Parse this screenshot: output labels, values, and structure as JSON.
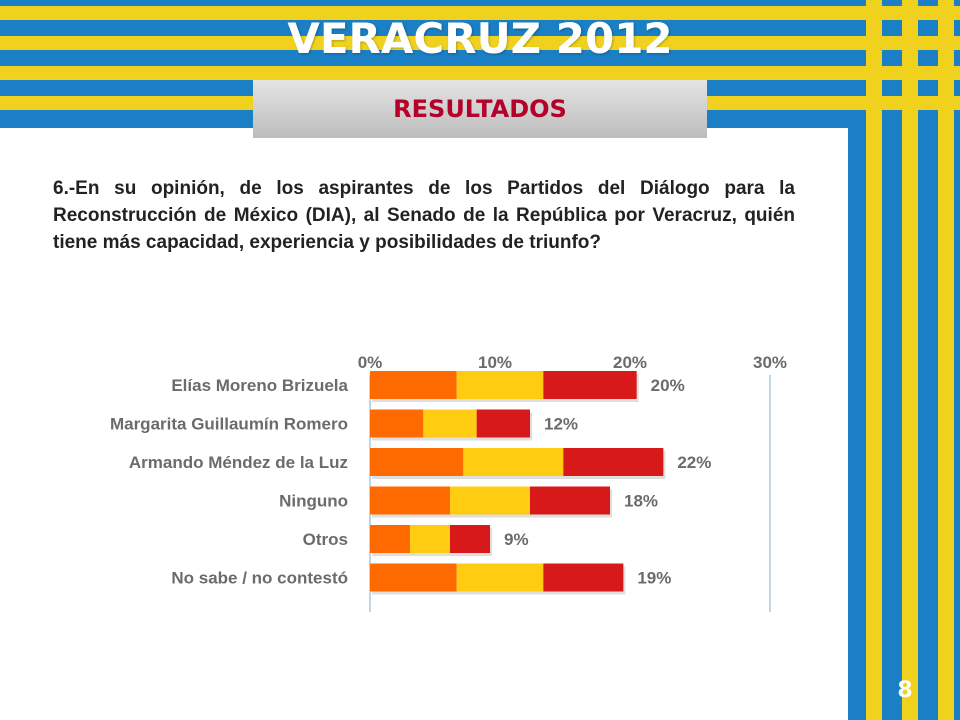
{
  "title": "VERACRUZ 2012",
  "subtitle": "RESULTADOS",
  "question": "6.-En su opinión, de los aspirantes de los Partidos del Diálogo para la Reconstrucción de México (DIA), al Senado de la República por Veracruz, quién tiene más capacidad, experiencia y posibilidades de triunfo?",
  "page_number": "8",
  "colors": {
    "background_blue": "#1a7fc4",
    "stripe_yellow": "#f0d21e",
    "subtitle_red": "#b5002a",
    "bar_orange": "#ff6a00",
    "bar_yellow": "#ffcc11",
    "bar_red": "#d81919"
  },
  "chart_data": {
    "type": "bar",
    "orientation": "horizontal",
    "stacked": true,
    "categories": [
      "Elías Moreno Brizuela",
      "Margarita Guillaumín Romero",
      "Armando Méndez  de la Luz",
      "Ninguno",
      "Otros",
      "No sabe / no contestó"
    ],
    "segments": [
      [
        6.5,
        6.5,
        7
      ],
      [
        4,
        4,
        4
      ],
      [
        7,
        7.5,
        7.5
      ],
      [
        6,
        6,
        6
      ],
      [
        3,
        3,
        3
      ],
      [
        6.5,
        6.5,
        6
      ]
    ],
    "total_labels": [
      "20%",
      "12%",
      "22%",
      "18%",
      "9%",
      "19%"
    ],
    "totals": [
      20,
      12,
      22,
      18,
      9,
      19
    ],
    "xticks": [
      "0%",
      "10%",
      "20%",
      "30%"
    ],
    "xlim": [
      0,
      30
    ],
    "grid": true
  }
}
